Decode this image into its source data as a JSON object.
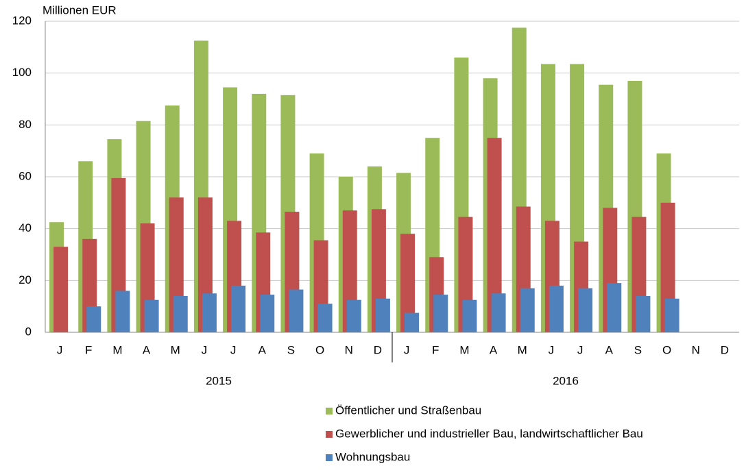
{
  "chart_data": {
    "type": "bar",
    "y_label": "Millionen EUR",
    "categories": [
      "J",
      "F",
      "M",
      "A",
      "M",
      "J",
      "J",
      "A",
      "S",
      "O",
      "N",
      "D",
      "J",
      "F",
      "M",
      "A",
      "M",
      "J",
      "J",
      "A",
      "S",
      "O",
      "N",
      "D"
    ],
    "groups": [
      "2015",
      "2016"
    ],
    "series": [
      {
        "name": "Öffentlicher und Straßenbau",
        "color": "#9bbb59",
        "values": [
          42.5,
          66,
          74.5,
          81.5,
          87.5,
          112.5,
          94.5,
          92,
          91.5,
          69,
          60,
          64,
          61.5,
          75,
          106,
          98,
          117.5,
          103.5,
          103.5,
          95.5,
          97,
          69,
          null,
          null
        ]
      },
      {
        "name": "Gewerblicher und industrieller Bau, landwirtschaftlicher Bau",
        "color": "#c0504d",
        "values": [
          33,
          36,
          59.5,
          42,
          52,
          52,
          43,
          38.5,
          46.5,
          35.5,
          47,
          47.5,
          38,
          29,
          44.5,
          75,
          48.5,
          43,
          35,
          48,
          44.5,
          50,
          null,
          null
        ]
      },
      {
        "name": "Wohnungsbau",
        "color": "#4f81bd",
        "values": [
          null,
          10,
          16,
          12.5,
          14,
          15,
          18,
          14.5,
          16.5,
          11,
          12.5,
          13,
          7.5,
          14.5,
          12.5,
          15,
          17,
          18,
          17,
          19,
          14,
          13,
          null,
          null
        ]
      }
    ],
    "ylim": [
      0,
      120
    ],
    "yticks": [
      0,
      20,
      40,
      60,
      80,
      100,
      120
    ],
    "grid": true
  }
}
